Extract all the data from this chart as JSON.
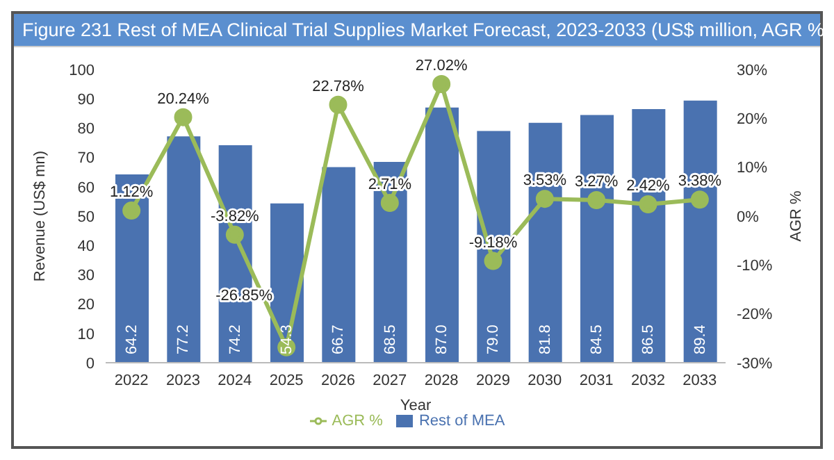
{
  "chart_data": {
    "type": "bar",
    "title": "Figure 231 Rest of MEA Clinical Trial Supplies Market Forecast, 2023-2033 (US$ million, AGR %)",
    "xlabel": "Year",
    "ylabel": "Revenue (US$ mn)",
    "y2label": "AGR %",
    "categories": [
      "2022",
      "2023",
      "2024",
      "2025",
      "2026",
      "2027",
      "2028",
      "2029",
      "2030",
      "2031",
      "2032",
      "2033"
    ],
    "series": [
      {
        "name": "Rest of MEA",
        "color": "#4a72b0",
        "values": [
          64.2,
          77.2,
          74.2,
          54.3,
          66.7,
          68.5,
          87.0,
          79.0,
          81.8,
          84.5,
          86.5,
          89.4
        ],
        "value_labels": [
          "64.2",
          "77.2",
          "74.2",
          "54.3",
          "66.7",
          "68.5",
          "87.0",
          "79.0",
          "81.8",
          "84.5",
          "86.5",
          "89.4"
        ]
      },
      {
        "name": "AGR %",
        "type": "line",
        "axis": "y2",
        "color": "#9bbb59",
        "marker": "circle",
        "values": [
          1.12,
          20.24,
          -3.82,
          -26.85,
          22.78,
          2.71,
          27.02,
          -9.18,
          3.53,
          3.27,
          2.42,
          3.38
        ],
        "value_labels": [
          "1.12%",
          "20.24%",
          "-3.82%",
          "-26.85%",
          "22.78%",
          "2.71%",
          "27.02%",
          "-9.18%",
          "3.53%",
          "3.27%",
          "2.42%",
          "3.38%"
        ]
      }
    ],
    "ylim": [
      0,
      100
    ],
    "yticks": [
      0,
      10,
      20,
      30,
      40,
      50,
      60,
      70,
      80,
      90,
      100
    ],
    "y2lim": [
      -30,
      30
    ],
    "y2ticks": [
      {
        "value": -30,
        "label": "-30%"
      },
      {
        "value": -20,
        "label": "-20%"
      },
      {
        "value": -10,
        "label": "-10%"
      },
      {
        "value": 0,
        "label": "0%"
      },
      {
        "value": 10,
        "label": "10%"
      },
      {
        "value": 20,
        "label": "20%"
      },
      {
        "value": 30,
        "label": "30%"
      }
    ],
    "grid": false,
    "legend": "bottom"
  }
}
